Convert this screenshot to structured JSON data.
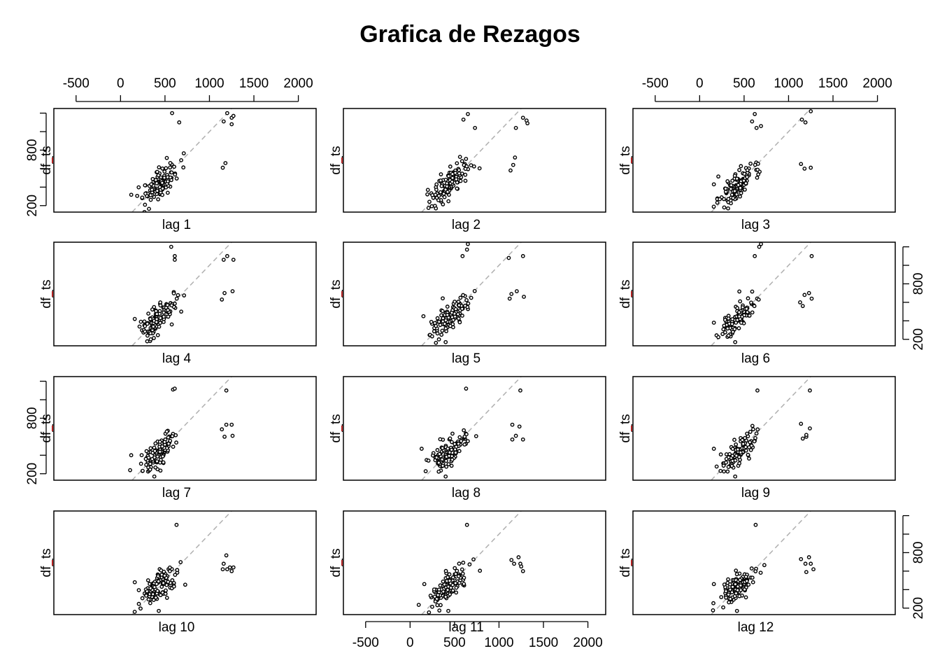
{
  "chart_data": {
    "type": "scatter",
    "title": "Grafica de Rezagos",
    "ylabel": "df_ts",
    "xlim": [
      -750,
      2200
    ],
    "ylim": [
      130,
      1250
    ],
    "x_ticks": [
      -500,
      0,
      500,
      1000,
      1500,
      2000
    ],
    "y_ticks": [
      200,
      800
    ],
    "reference_line": "y = x",
    "panels": [
      {
        "label": "lag 1",
        "outliers": [
          [
            580,
            1200
          ],
          [
            660,
            1100
          ],
          [
            1160,
            1110
          ],
          [
            1200,
            1200
          ],
          [
            1250,
            1150
          ],
          [
            1270,
            1170
          ],
          [
            1250,
            1080
          ],
          [
            1150,
            610
          ],
          [
            1180,
            660
          ],
          [
            280,
            330
          ],
          [
            320,
            165
          ]
        ]
      },
      {
        "label": "lag 2",
        "outliers": [
          [
            600,
            1130
          ],
          [
            650,
            1190
          ],
          [
            730,
            1040
          ],
          [
            1190,
            1040
          ],
          [
            1270,
            1150
          ],
          [
            1310,
            1120
          ],
          [
            1320,
            1090
          ],
          [
            1130,
            580
          ],
          [
            1160,
            640
          ],
          [
            1180,
            720
          ],
          [
            200,
            370
          ],
          [
            290,
            170
          ]
        ]
      },
      {
        "label": "lag 3",
        "outliers": [
          [
            590,
            1110
          ],
          [
            620,
            1190
          ],
          [
            690,
            1060
          ],
          [
            640,
            1040
          ],
          [
            1150,
            1130
          ],
          [
            1190,
            1100
          ],
          [
            1250,
            1220
          ],
          [
            1140,
            650
          ],
          [
            1180,
            600
          ],
          [
            1250,
            610
          ],
          [
            160,
            430
          ],
          [
            320,
            170
          ]
        ]
      },
      {
        "label": "lag 4",
        "outliers": [
          [
            570,
            1200
          ],
          [
            610,
            1100
          ],
          [
            610,
            1060
          ],
          [
            1160,
            1060
          ],
          [
            1200,
            1100
          ],
          [
            1270,
            1060
          ],
          [
            1140,
            630
          ],
          [
            1170,
            700
          ],
          [
            1260,
            720
          ],
          [
            160,
            420
          ],
          [
            340,
            200
          ]
        ]
      },
      {
        "label": "lag 5",
        "outliers": [
          [
            590,
            1100
          ],
          [
            640,
            1170
          ],
          [
            650,
            1230
          ],
          [
            1110,
            1080
          ],
          [
            1270,
            1100
          ],
          [
            1120,
            640
          ],
          [
            1140,
            690
          ],
          [
            1200,
            720
          ],
          [
            1280,
            660
          ],
          [
            150,
            450
          ],
          [
            400,
            170
          ]
        ]
      },
      {
        "label": "lag 6",
        "outliers": [
          [
            620,
            1100
          ],
          [
            670,
            1200
          ],
          [
            690,
            1230
          ],
          [
            1260,
            1100
          ],
          [
            1130,
            600
          ],
          [
            1160,
            560
          ],
          [
            1180,
            680
          ],
          [
            1230,
            700
          ],
          [
            1260,
            640
          ],
          [
            160,
            380
          ],
          [
            400,
            170
          ]
        ]
      },
      {
        "label": "lag 7",
        "outliers": [
          [
            590,
            1110
          ],
          [
            610,
            1120
          ],
          [
            1190,
            1100
          ],
          [
            1140,
            680
          ],
          [
            1170,
            600
          ],
          [
            1190,
            730
          ],
          [
            1250,
            730
          ],
          [
            1260,
            610
          ],
          [
            120,
            400
          ],
          [
            380,
            170
          ]
        ]
      },
      {
        "label": "lag 8",
        "outliers": [
          [
            630,
            1120
          ],
          [
            1240,
            1100
          ],
          [
            1150,
            730
          ],
          [
            1150,
            570
          ],
          [
            1190,
            610
          ],
          [
            1230,
            710
          ],
          [
            1270,
            570
          ],
          [
            130,
            470
          ],
          [
            400,
            170
          ]
        ]
      },
      {
        "label": "lag 9",
        "outliers": [
          [
            650,
            1100
          ],
          [
            1240,
            1100
          ],
          [
            1140,
            740
          ],
          [
            1160,
            580
          ],
          [
            1200,
            600
          ],
          [
            1240,
            690
          ],
          [
            1200,
            620
          ],
          [
            160,
            470
          ],
          [
            400,
            170
          ]
        ]
      },
      {
        "label": "lag 10",
        "outliers": [
          [
            630,
            1100
          ],
          [
            1160,
            680
          ],
          [
            1190,
            770
          ],
          [
            1200,
            620
          ],
          [
            1230,
            640
          ],
          [
            1250,
            600
          ],
          [
            1270,
            640
          ],
          [
            1150,
            620
          ],
          [
            160,
            480
          ],
          [
            430,
            170
          ]
        ]
      },
      {
        "label": "lag 11",
        "outliers": [
          [
            640,
            1100
          ],
          [
            1140,
            720
          ],
          [
            1170,
            680
          ],
          [
            1220,
            750
          ],
          [
            1240,
            680
          ],
          [
            1270,
            600
          ],
          [
            1250,
            650
          ],
          [
            160,
            460
          ],
          [
            430,
            170
          ]
        ]
      },
      {
        "label": "lag 12",
        "outliers": [
          [
            630,
            1100
          ],
          [
            1140,
            730
          ],
          [
            1190,
            680
          ],
          [
            1230,
            750
          ],
          [
            1250,
            680
          ],
          [
            1280,
            620
          ],
          [
            1200,
            590
          ],
          [
            160,
            460
          ],
          [
            420,
            170
          ]
        ]
      }
    ]
  }
}
